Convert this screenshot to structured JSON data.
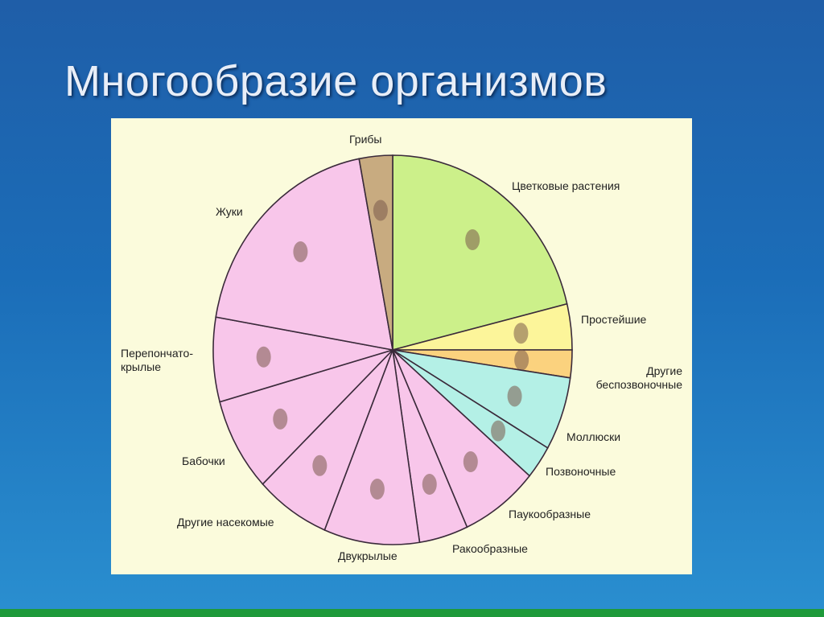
{
  "slide": {
    "title": "Многообразие организмов"
  },
  "chart_data": {
    "type": "pie",
    "title": "",
    "start": "top",
    "direction": "clockwise",
    "unit": "approximate share of species, %",
    "slices": [
      {
        "label": "Цветковые растения",
        "value": 21.2,
        "color": "#ccf08a"
      },
      {
        "label": "Простейшие",
        "value": 3.8,
        "color": "#fcf59a"
      },
      {
        "label": "Другие беспозвоночные",
        "value": 2.3,
        "color": "#fbd27e"
      },
      {
        "label": "Моллюски",
        "value": 6.1,
        "color": "#b4f0e6"
      },
      {
        "label": "Позвоночные",
        "value": 2.8,
        "color": "#b4f0e6"
      },
      {
        "label": "Паукообразные",
        "value": 7.0,
        "color": "#f8c6ea"
      },
      {
        "label": "Ракообразные",
        "value": 4.4,
        "color": "#f8c6ea"
      },
      {
        "label": "Двукрылые",
        "value": 8.6,
        "color": "#f8c6ea"
      },
      {
        "label": "Другие насекомые",
        "value": 6.7,
        "color": "#f8c6ea"
      },
      {
        "label": "Бабочки",
        "value": 7.8,
        "color": "#f8c6ea"
      },
      {
        "label": "Перепончато-\nкрылые",
        "value": 7.0,
        "color": "#f8c6ea"
      },
      {
        "label": "Жуки",
        "value": 19.3,
        "color": "#f8c6ea"
      },
      {
        "label": "Грибы",
        "value": 3.0,
        "color": "#c8ab80"
      }
    ],
    "legend": "labels around pie"
  }
}
